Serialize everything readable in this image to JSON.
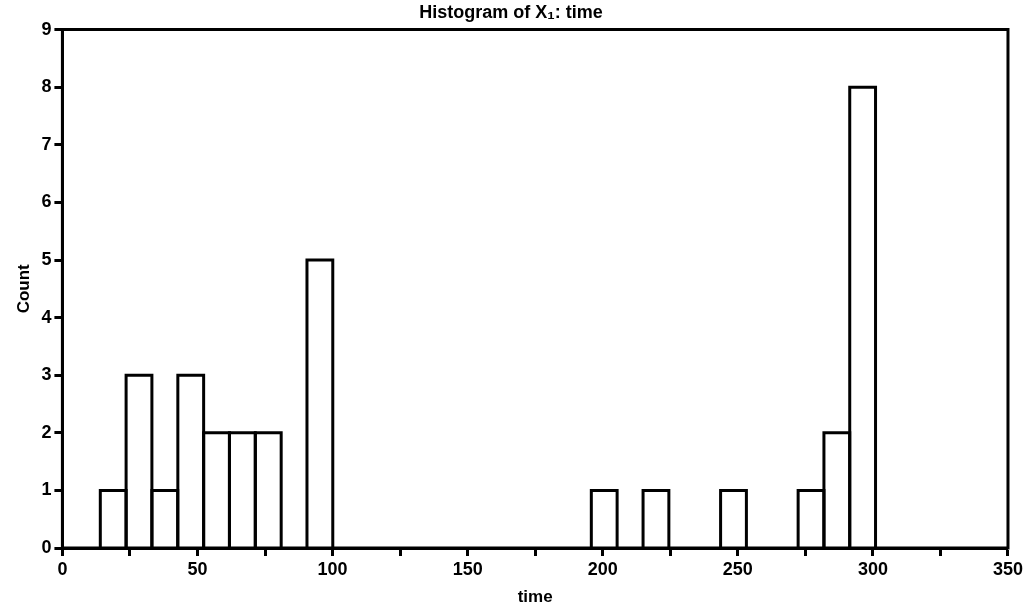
{
  "chart_data": {
    "type": "histogram",
    "title": "Histogram of X₁: time",
    "xlabel": "time",
    "ylabel": "Count",
    "bins": [
      14,
      23.6,
      33.1,
      42.7,
      52.3,
      61.8,
      71.4,
      81.0,
      90.5,
      100.1,
      109.7,
      119.2,
      128.8,
      138.4,
      147.9,
      157.5,
      167.1,
      176.6,
      186.2,
      195.8,
      205.3,
      214.9,
      224.5,
      234.0,
      243.6,
      253.2,
      262.7,
      272.3,
      281.9,
      291.4,
      301
    ],
    "values": [
      1,
      3,
      1,
      3,
      2,
      2,
      2,
      0,
      5,
      0,
      0,
      0,
      0,
      0,
      0,
      0,
      0,
      0,
      0,
      1,
      0,
      1,
      0,
      0,
      1,
      0,
      0,
      1,
      2,
      8
    ],
    "color": "#ffffff",
    "xlim": [
      0,
      350
    ],
    "xticks": [
      0,
      {
        "value": 25,
        "label": null
      },
      50,
      {
        "value": 75,
        "label": null
      },
      100,
      {
        "value": 125,
        "label": null
      },
      150,
      {
        "value": 175,
        "label": null
      },
      200,
      {
        "value": 225,
        "label": null
      },
      250,
      {
        "value": 275,
        "label": null
      },
      300,
      {
        "value": 325,
        "label": null
      },
      350
    ],
    "ylim": [
      0,
      9
    ],
    "yticks": [
      0,
      1,
      2,
      3,
      4,
      5,
      6,
      7,
      8,
      9
    ],
    "grid": false,
    "legend": false
  }
}
